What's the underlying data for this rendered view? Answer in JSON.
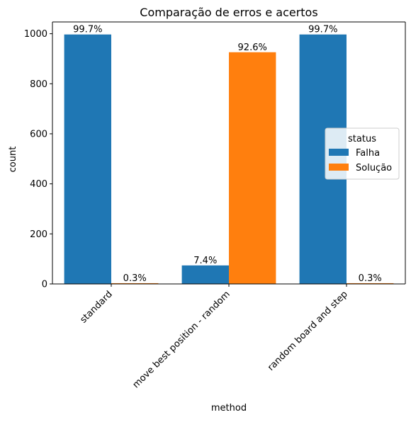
{
  "chart_data": {
    "type": "bar",
    "title": "Comparação de erros e acertos",
    "xlabel": "method",
    "ylabel": "count",
    "categories": [
      "standard",
      "move best position - random",
      "random board and step"
    ],
    "series": [
      {
        "name": "Falha",
        "color": "#1f77b4",
        "values": [
          997,
          74,
          997
        ],
        "labels": [
          "99.7%",
          "7.4%",
          "99.7%"
        ]
      },
      {
        "name": "Solução",
        "color": "#ff7f0e",
        "values": [
          3,
          926,
          3
        ],
        "labels": [
          "0.3%",
          "92.6%",
          "0.3%"
        ]
      }
    ],
    "yticks": [
      0,
      200,
      400,
      600,
      800,
      1000
    ],
    "ylim": [
      0,
      1047
    ],
    "legend": {
      "title": "status",
      "position": "center-right"
    },
    "grid": false
  }
}
